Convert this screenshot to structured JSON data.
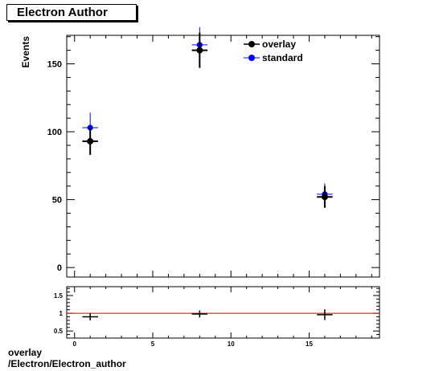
{
  "title": "Electron_Author",
  "title_display": "Electron  Author",
  "footer": {
    "line1": "overlay",
    "line2": "/Electron/Electron_author"
  },
  "chart_data": [
    {
      "type": "scatter",
      "ylabel": "Events",
      "xlim": [
        -0.5,
        19.5
      ],
      "ylim": [
        -7,
        171
      ],
      "y_ticks": [
        0,
        50,
        100,
        150
      ],
      "legend": "top-right",
      "series": [
        {
          "name": "overlay",
          "color": "#000000",
          "points": [
            {
              "x": 1,
              "y": 93,
              "yerr": 10,
              "xerr": 0.5
            },
            {
              "x": 8,
              "y": 160,
              "yerr": 13,
              "xerr": 0.5
            },
            {
              "x": 16,
              "y": 52,
              "yerr": 8,
              "xerr": 0.5
            }
          ]
        },
        {
          "name": "standard",
          "color": "#0000ff",
          "points": [
            {
              "x": 1,
              "y": 103,
              "yerr": 11,
              "xerr": 0.5
            },
            {
              "x": 8,
              "y": 164,
              "yerr": 13,
              "xerr": 0.5
            },
            {
              "x": 16,
              "y": 54,
              "yerr": 8,
              "xerr": 0.5
            }
          ]
        }
      ]
    },
    {
      "type": "scatter",
      "role": "ratio",
      "xlim": [
        -0.5,
        19.5
      ],
      "ylim": [
        0.3,
        1.75
      ],
      "x_ticks": [
        0,
        5,
        10,
        15
      ],
      "y_ticks": [
        0.5,
        1,
        1.5
      ],
      "reference_line": {
        "y": 1,
        "color": "#cc0000"
      },
      "points": [
        {
          "x": 1,
          "y": 0.9,
          "yerr": 0.1,
          "xerr": 0.5
        },
        {
          "x": 8,
          "y": 0.98,
          "yerr": 0.1,
          "xerr": 0.5
        },
        {
          "x": 16,
          "y": 0.96,
          "yerr": 0.15,
          "xerr": 0.5
        }
      ]
    }
  ]
}
